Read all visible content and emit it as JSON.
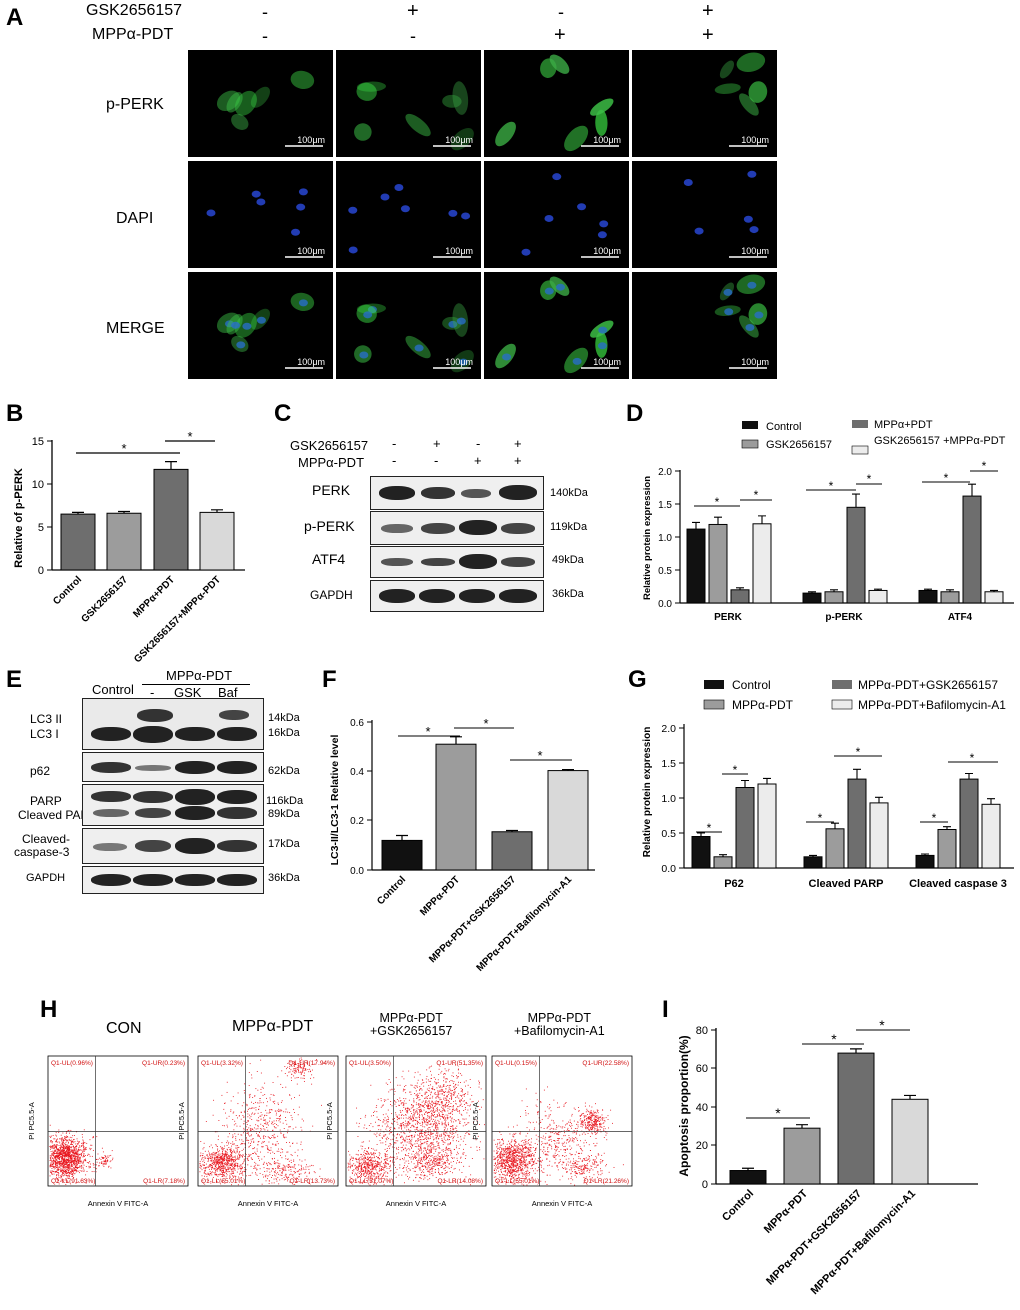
{
  "panel_letters": [
    "A",
    "B",
    "C",
    "D",
    "E",
    "F",
    "G",
    "H",
    "I"
  ],
  "panelA": {
    "row_headers": [
      "GSK2656157",
      "MPPα-PDT"
    ],
    "column_signs": [
      [
        "-",
        "-"
      ],
      [
        "+",
        "-"
      ],
      [
        "-",
        "+"
      ],
      [
        "+",
        "+"
      ]
    ],
    "row_labels": [
      "p-PERK",
      "DAPI",
      "MERGE"
    ],
    "scale_bar": "100μm"
  },
  "panelC": {
    "row_headers": [
      "GSK2656157",
      "MPPα-PDT"
    ],
    "column_signs": [
      [
        "-",
        "-"
      ],
      [
        "+",
        "-"
      ],
      [
        "-",
        "+"
      ],
      [
        "+",
        "+"
      ]
    ],
    "bands": [
      {
        "name": "PERK",
        "kda": "140kDa"
      },
      {
        "name": "p-PERK",
        "kda": "119kDa"
      },
      {
        "name": "ATF4",
        "kda": "49kDa"
      },
      {
        "name": "GAPDH",
        "kda": "36kDa"
      }
    ]
  },
  "panelE": {
    "group_header": "MPPα-PDT",
    "control_label": "Control",
    "sub_labels": [
      "-",
      "GSK",
      "Baf"
    ],
    "bands": [
      {
        "name": "LC3 II",
        "kda": "14kDa"
      },
      {
        "name": "LC3 I",
        "kda": "16kDa"
      },
      {
        "name": "p62",
        "kda": "62kDa"
      },
      {
        "name": "PARP",
        "kda": "116kDa"
      },
      {
        "name": "Cleaved PARP",
        "kda": "89kDa"
      },
      {
        "name": "Cleaved-",
        "kda": "17kDa"
      },
      {
        "name": "caspase-3",
        "kda": ""
      },
      {
        "name": "GAPDH",
        "kda": "36kDa"
      }
    ]
  },
  "panelH": {
    "titles": [
      "CON",
      "MPPα-PDT",
      "MPPα-PDT\n+GSK2656157",
      "MPPα-PDT\n+Bafilomycin-A1"
    ],
    "xlabel": "Annexin V FITC-A",
    "ylabel": "PI PC5.5-A",
    "quadrants": [
      {
        "UL": "Q1-UL(0.96%)",
        "UR": "Q1-UR(0.23%)",
        "LL": "Q1-LL(91.63%)",
        "LR": "Q1-LR(7.18%)"
      },
      {
        "UL": "Q1-UL(3.32%)",
        "UR": "Q1-UR(17.94%)",
        "LL": "Q1-LL(65.01%)",
        "LR": "Q1-LR(13.73%)"
      },
      {
        "UL": "Q1-UL(3.50%)",
        "UR": "Q1-UR(51.35%)",
        "LL": "Q1-LL(31.07%)",
        "LR": "Q1-LR(14.08%)"
      },
      {
        "UL": "Q1-UL(0.15%)",
        "UR": "Q1-UR(22.58%)",
        "LL": "Q1-LL(55.01%)",
        "LR": "Q1-LR(21.26%)"
      }
    ]
  },
  "colors": {
    "black": "#111111",
    "dark_gray": "#6e6e6e",
    "mid_gray": "#9c9c9c",
    "light_gray": "#d9d9d9",
    "flow_red": "#e8141c"
  },
  "chart_data": [
    {
      "id": "B",
      "type": "bar",
      "categories": [
        "Control",
        "GSK2656157",
        "MPPα+PDT",
        "GSK2656157+MPPα-PDT"
      ],
      "values": [
        6.5,
        6.6,
        11.7,
        6.7
      ],
      "errors": [
        0.2,
        0.2,
        0.9,
        0.3
      ],
      "ylabel": "Relative of p-PERK",
      "ylim": [
        0,
        15
      ],
      "yticks": [
        "0",
        "5",
        "10",
        "15"
      ],
      "significance": [
        "*",
        "*"
      ],
      "grid": false
    },
    {
      "id": "D",
      "type": "bar",
      "categories": [
        "PERK",
        "p-PERK",
        "ATF4"
      ],
      "series": [
        {
          "name": "Control",
          "values": [
            1.12,
            0.15,
            0.19
          ],
          "errors": [
            0.1,
            0.02,
            0.02
          ]
        },
        {
          "name": "GSK2656157",
          "values": [
            1.19,
            0.17,
            0.17
          ],
          "errors": [
            0.11,
            0.03,
            0.03
          ]
        },
        {
          "name": "MPPα+PDT",
          "values": [
            0.2,
            1.45,
            1.62
          ],
          "errors": [
            0.03,
            0.2,
            0.18
          ]
        },
        {
          "name": "GSK2656157\n+MPPα-PDT",
          "values": [
            1.2,
            0.19,
            0.17
          ],
          "errors": [
            0.12,
            0.02,
            0.02
          ]
        }
      ],
      "ylabel": "Relative protein expression",
      "ylim": [
        0,
        2.0
      ],
      "yticks": [
        "0.0",
        "0.5",
        "1.0",
        "1.5",
        "2.0"
      ],
      "significance": [
        "*",
        "*",
        "*",
        "*",
        "*",
        "*"
      ],
      "legend": "top"
    },
    {
      "id": "F",
      "type": "bar",
      "categories": [
        "Control",
        "MPPα-PDT",
        "MPPα-PDT+GSK2656157",
        "MPPα-PDT+Bafilomycin-A1"
      ],
      "values": [
        0.12,
        0.51,
        0.155,
        0.403
      ],
      "errors": [
        0.02,
        0.03,
        0.005,
        0.004
      ],
      "ylabel": "LC3-II/LC3-1 Relative level",
      "ylim": [
        0,
        0.6
      ],
      "yticks": [
        "0.0",
        "0.2",
        "0.4",
        "0.6"
      ],
      "significance": [
        "*",
        "*",
        "*"
      ]
    },
    {
      "id": "G",
      "type": "bar",
      "categories": [
        "P62",
        "Cleaved PARP",
        "Cleaved caspase 3"
      ],
      "series": [
        {
          "name": "Control",
          "values": [
            0.45,
            0.16,
            0.18
          ],
          "errors": [
            0.05,
            0.02,
            0.02
          ]
        },
        {
          "name": "MPPα-PDT",
          "values": [
            0.16,
            0.56,
            0.55
          ],
          "errors": [
            0.03,
            0.08,
            0.04
          ]
        },
        {
          "name": "MPPα-PDT+GSK2656157",
          "values": [
            1.15,
            1.27,
            1.27
          ],
          "errors": [
            0.1,
            0.14,
            0.08
          ]
        },
        {
          "name": "MPPα-PDT+Bafilomycin-A1",
          "values": [
            1.2,
            0.93,
            0.91
          ],
          "errors": [
            0.08,
            0.08,
            0.08
          ]
        }
      ],
      "ylabel": "Relative protein expression",
      "ylim": [
        0,
        2.0
      ],
      "yticks": [
        "0.0",
        "0.5",
        "1.0",
        "1.5",
        "2.0"
      ],
      "significance": [
        "*",
        "*",
        "*",
        "*",
        "*",
        "*"
      ],
      "legend": "top"
    },
    {
      "id": "I",
      "type": "bar",
      "categories": [
        "Control",
        "MPPα-PDT",
        "MPPα-PDT+GSK2656157",
        "MPPα-PDT+Bafilomycin-A1"
      ],
      "values": [
        7,
        29,
        68,
        44
      ],
      "errors": [
        1.2,
        1.8,
        2.2,
        2.0
      ],
      "ylabel": "Apoptosis proportion(%)",
      "ylim": [
        0,
        80
      ],
      "yticks": [
        "0",
        "20",
        "40",
        "60",
        "80"
      ],
      "significance": [
        "*",
        "*",
        "*"
      ]
    }
  ]
}
